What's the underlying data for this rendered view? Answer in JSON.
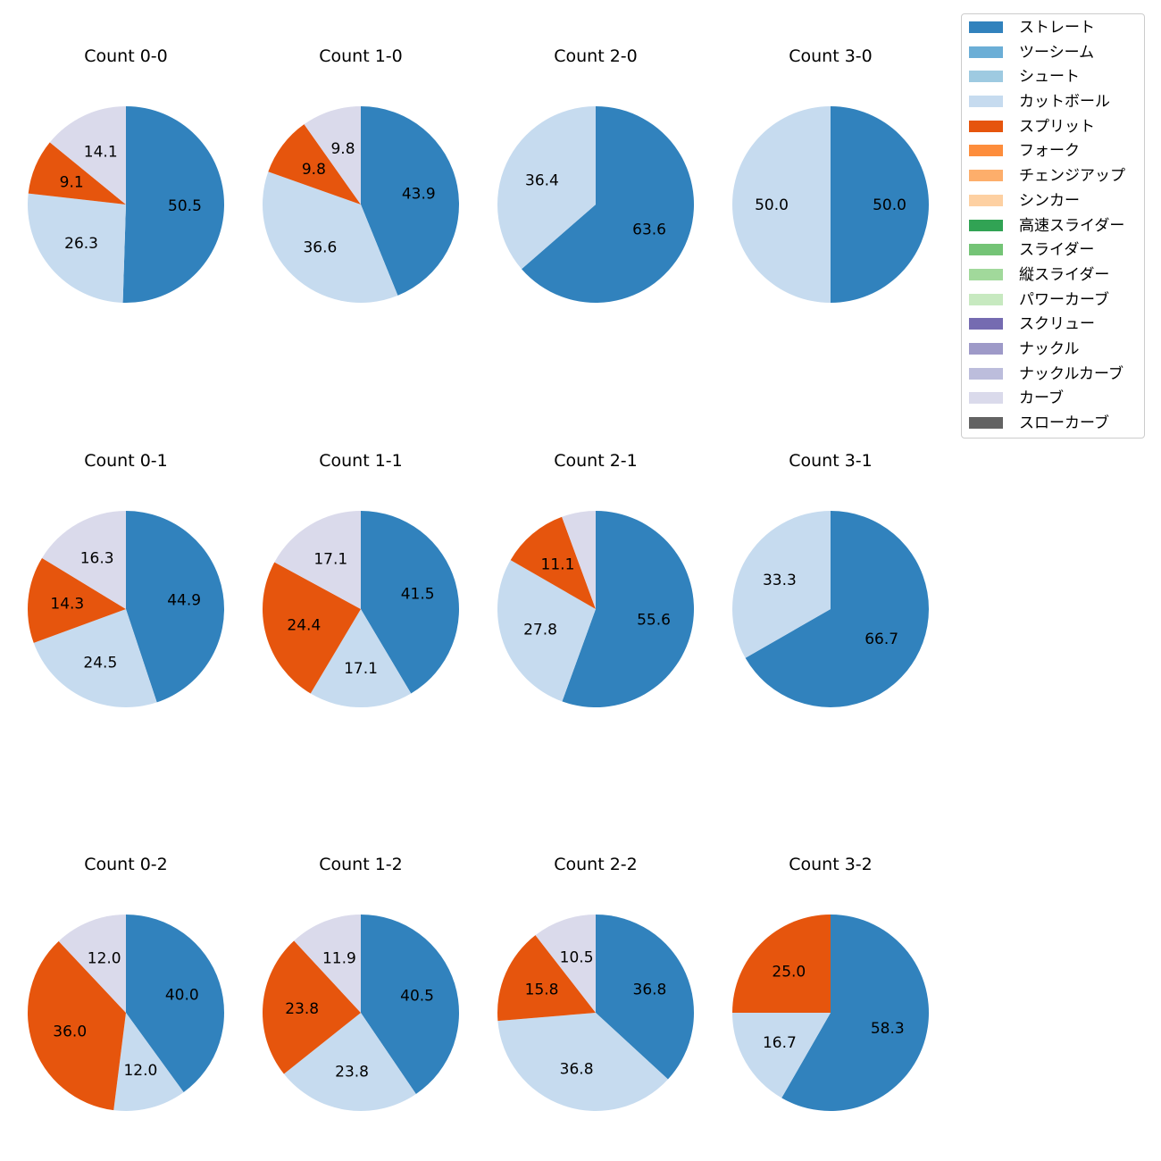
{
  "colors": {
    "ストレート": "#3182bd",
    "ツーシーム": "#6baed6",
    "シュート": "#9ecae1",
    "カットボール": "#c6dbef",
    "スプリット": "#e6550d",
    "フォーク": "#fd8d3c",
    "チェンジアップ": "#fdae6b",
    "シンカー": "#fdd0a2",
    "高速スライダー": "#31a354",
    "スライダー": "#74c476",
    "縦スライダー": "#a1d99b",
    "パワーカーブ": "#c7e9c0",
    "スクリュー": "#756bb1",
    "ナックル": "#9e9ac8",
    "ナックルカーブ": "#bcbddc",
    "カーブ": "#dadaeb",
    "スローカーブ": "#636363"
  },
  "legend": [
    "ストレート",
    "ツーシーム",
    "シュート",
    "カットボール",
    "スプリット",
    "フォーク",
    "チェンジアップ",
    "シンカー",
    "高速スライダー",
    "スライダー",
    "縦スライダー",
    "パワーカーブ",
    "スクリュー",
    "ナックル",
    "ナックルカーブ",
    "カーブ",
    "スローカーブ"
  ],
  "chart_data": [
    {
      "type": "pie",
      "title": "Count 0-0",
      "slices": [
        {
          "label": "ストレート",
          "value": 50.5
        },
        {
          "label": "カットボール",
          "value": 26.3
        },
        {
          "label": "スプリット",
          "value": 9.1
        },
        {
          "label": "カーブ",
          "value": 14.1
        }
      ]
    },
    {
      "type": "pie",
      "title": "Count 1-0",
      "slices": [
        {
          "label": "ストレート",
          "value": 43.9
        },
        {
          "label": "カットボール",
          "value": 36.6
        },
        {
          "label": "スプリット",
          "value": 9.8
        },
        {
          "label": "カーブ",
          "value": 9.8
        }
      ]
    },
    {
      "type": "pie",
      "title": "Count 2-0",
      "slices": [
        {
          "label": "ストレート",
          "value": 63.6
        },
        {
          "label": "カットボール",
          "value": 36.4
        }
      ]
    },
    {
      "type": "pie",
      "title": "Count 3-0",
      "slices": [
        {
          "label": "ストレート",
          "value": 50.0
        },
        {
          "label": "カットボール",
          "value": 50.0
        }
      ]
    },
    {
      "type": "pie",
      "title": "Count 0-1",
      "slices": [
        {
          "label": "ストレート",
          "value": 44.9
        },
        {
          "label": "カットボール",
          "value": 24.5
        },
        {
          "label": "スプリット",
          "value": 14.3
        },
        {
          "label": "カーブ",
          "value": 16.3
        }
      ]
    },
    {
      "type": "pie",
      "title": "Count 1-1",
      "slices": [
        {
          "label": "ストレート",
          "value": 41.5
        },
        {
          "label": "カットボール",
          "value": 17.1
        },
        {
          "label": "スプリット",
          "value": 24.4
        },
        {
          "label": "カーブ",
          "value": 17.1
        }
      ]
    },
    {
      "type": "pie",
      "title": "Count 2-1",
      "slices": [
        {
          "label": "ストレート",
          "value": 55.6
        },
        {
          "label": "カットボール",
          "value": 27.8
        },
        {
          "label": "スプリット",
          "value": 11.1
        },
        {
          "label": "カーブ",
          "value": 5.6,
          "show_label": false
        }
      ]
    },
    {
      "type": "pie",
      "title": "Count 3-1",
      "slices": [
        {
          "label": "ストレート",
          "value": 66.7
        },
        {
          "label": "カットボール",
          "value": 33.3
        }
      ]
    },
    {
      "type": "pie",
      "title": "Count 0-2",
      "slices": [
        {
          "label": "ストレート",
          "value": 40.0
        },
        {
          "label": "カットボール",
          "value": 12.0
        },
        {
          "label": "スプリット",
          "value": 36.0
        },
        {
          "label": "カーブ",
          "value": 12.0
        }
      ]
    },
    {
      "type": "pie",
      "title": "Count 1-2",
      "slices": [
        {
          "label": "ストレート",
          "value": 40.5
        },
        {
          "label": "カットボール",
          "value": 23.8
        },
        {
          "label": "スプリット",
          "value": 23.8
        },
        {
          "label": "カーブ",
          "value": 11.9
        }
      ]
    },
    {
      "type": "pie",
      "title": "Count 2-2",
      "slices": [
        {
          "label": "ストレート",
          "value": 36.8
        },
        {
          "label": "カットボール",
          "value": 36.8
        },
        {
          "label": "スプリット",
          "value": 15.8
        },
        {
          "label": "カーブ",
          "value": 10.5
        }
      ]
    },
    {
      "type": "pie",
      "title": "Count 3-2",
      "slices": [
        {
          "label": "ストレート",
          "value": 58.3
        },
        {
          "label": "カットボール",
          "value": 16.7
        },
        {
          "label": "スプリット",
          "value": 25.0
        }
      ]
    }
  ]
}
